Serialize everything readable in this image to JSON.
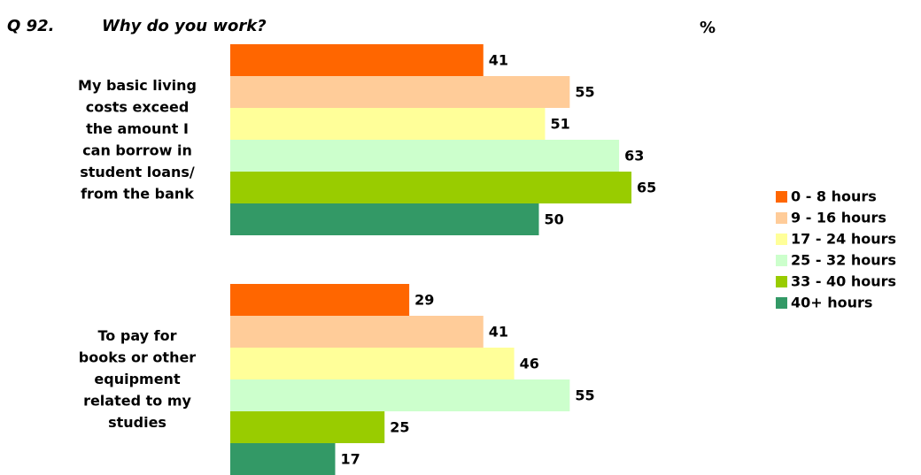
{
  "chart_data": {
    "type": "hbar",
    "question": "Q 92.",
    "title": "Why do you work?",
    "unit": "%",
    "categories": [
      "My basic living costs exceed the amount I can borrow in student loans/ from the bank",
      "To pay for books or other equipment related to my studies"
    ],
    "series": [
      {
        "name": "0 - 8 hours",
        "color": "#ff6600",
        "values": [
          41,
          29
        ]
      },
      {
        "name": "9 - 16 hours",
        "color": "#ffcc99",
        "values": [
          55,
          41
        ]
      },
      {
        "name": "17 - 24 hours",
        "color": "#ffff99",
        "values": [
          51,
          46
        ]
      },
      {
        "name": "25 - 32 hours",
        "color": "#ccffcc",
        "values": [
          63,
          55
        ]
      },
      {
        "name": "33 - 40 hours",
        "color": "#99cc00",
        "values": [
          65,
          25
        ]
      },
      {
        "name": "40+ hours",
        "color": "#339966",
        "values": [
          50,
          17
        ]
      }
    ],
    "legend": "right"
  }
}
